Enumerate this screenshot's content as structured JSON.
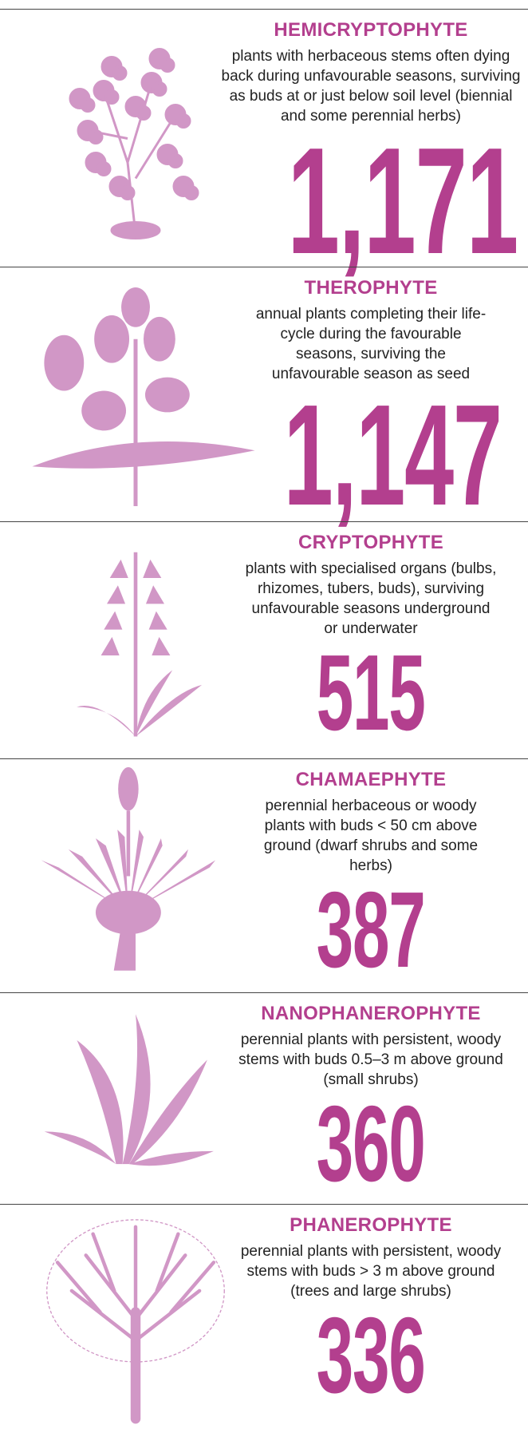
{
  "sections": [
    {
      "title": "HEMICRYPTOPHYTE",
      "description": "plants with herbaceous stems often dying back during unfavourable seasons, surviving as buds at or just below soil level (biennial and some perennial herbs)",
      "count": "1,171"
    },
    {
      "title": "THEROPHYTE",
      "description": "annual plants completing their life-cycle during the favourable seasons, surviving the unfavourable season as seed",
      "count": "1,147"
    },
    {
      "title": "CRYPTOPHYTE",
      "description": "plants with specialised organs (bulbs, rhizomes, tubers, buds), surviving unfavourable seasons underground or underwater",
      "count": "515"
    },
    {
      "title": "CHAMAEPHYTE",
      "description": "perennial herbaceous or woody plants with buds < 50 cm above ground (dwarf shrubs and some herbs)",
      "count": "387"
    },
    {
      "title": "NANOPHANEROPHYTE",
      "description": "perennial plants with persistent, woody stems with buds 0.5–3 m above ground (small shrubs)",
      "count": "360"
    },
    {
      "title": "PHANEROPHYTE",
      "description": "perennial plants with persistent, woody stems with buds > 3 m above ground (trees and large shrubs)",
      "count": "336"
    }
  ]
}
